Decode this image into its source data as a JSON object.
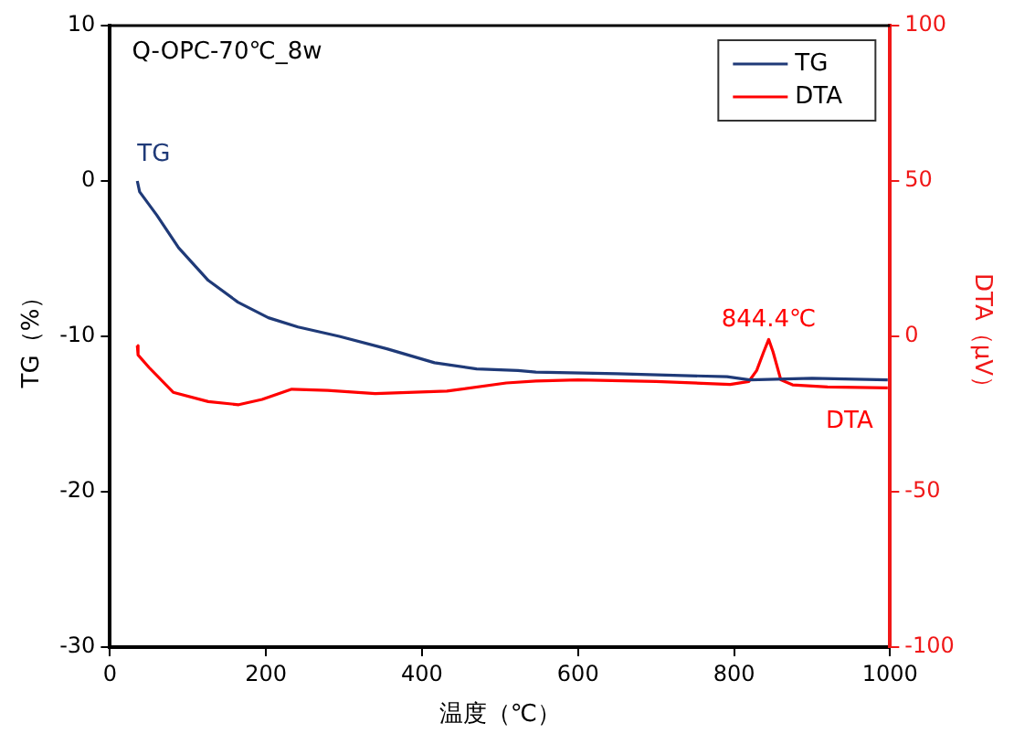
{
  "chart_data": {
    "type": "line",
    "title": "Q-OPC-70℃_8w",
    "xlabel": "温度（℃）",
    "ylabel": "TG（%）",
    "y2label": "DTA（μV）",
    "xlim": [
      0,
      1000
    ],
    "xticks": [
      0,
      200,
      400,
      600,
      800,
      1000
    ],
    "ylim": [
      -30,
      10
    ],
    "yticks": [
      -30,
      -20,
      -10,
      0,
      10
    ],
    "y2lim": [
      -100,
      100
    ],
    "y2ticks": [
      -100,
      -50,
      0,
      50,
      100
    ],
    "grid": false,
    "legend": "top right",
    "marker": "none",
    "line_style": "solid",
    "series": [
      {
        "name": "TG",
        "color": "#1f3a78",
        "x": [
          35,
          38,
          60,
          88,
          126,
          164,
          203,
          241,
          294,
          355,
          416,
          470,
          523,
          546,
          650,
          791,
          820,
          900,
          997
        ],
        "values": [
          0,
          -0.7,
          -2.2,
          -4.3,
          -6.4,
          -7.8,
          -8.8,
          -9.4,
          -10.0,
          -10.8,
          -11.7,
          -12.1,
          -12.2,
          -12.3,
          -12.4,
          -12.6,
          -12.8,
          -12.7,
          -12.8
        ]
      },
      {
        "name": "DTA",
        "color": "#ff0000",
        "axis": "y2",
        "x": [
          35,
          36,
          50,
          81,
          126,
          165,
          195,
          233,
          279,
          340,
          432,
          508,
          546,
          600,
          700,
          795,
          819,
          829,
          838,
          844.4,
          850,
          860,
          875,
          920,
          997
        ],
        "values": [
          -3,
          -6,
          -10,
          -18,
          -21,
          -22,
          -20.3,
          -17,
          -17.4,
          -18.4,
          -17.6,
          -15,
          -14.4,
          -14,
          -14.5,
          -15.5,
          -14.5,
          -11,
          -5,
          -1,
          -5,
          -14,
          -15.6,
          -16.3,
          -16.6
        ]
      }
    ],
    "annotations": [
      "TG",
      "844.4℃",
      "DTA"
    ]
  }
}
